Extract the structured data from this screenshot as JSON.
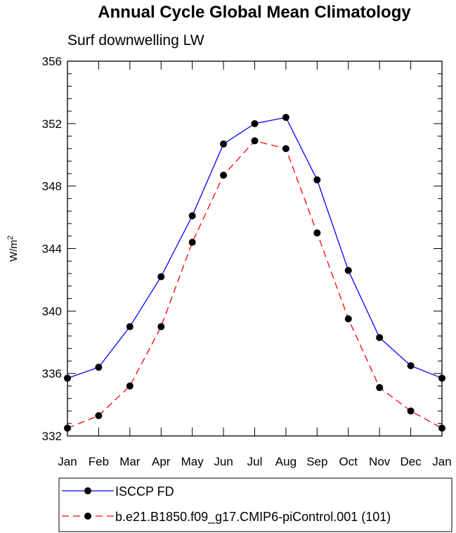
{
  "chart_data": {
    "type": "line",
    "title": "Annual Cycle Global Mean Climatology",
    "subtitle": "Surf downwelling LW",
    "xlabel": "",
    "ylabel": "W/m",
    "ylabel_superscript": "2",
    "categories": [
      "Jan",
      "Feb",
      "Mar",
      "Apr",
      "May",
      "Jun",
      "Jul",
      "Aug",
      "Sep",
      "Oct",
      "Nov",
      "Dec",
      "Jan"
    ],
    "ylim": [
      332,
      356
    ],
    "yticks": [
      332,
      336,
      340,
      344,
      348,
      352,
      356
    ],
    "series": [
      {
        "name": "ISCCP FD",
        "color": "#0000ff",
        "dash": "solid",
        "values": [
          335.7,
          336.4,
          339.0,
          342.2,
          346.1,
          350.7,
          352.0,
          352.4,
          348.4,
          342.6,
          338.3,
          336.5,
          335.7
        ]
      },
      {
        "name": "b.e21.B1850.f09_g17.CMIP6-piControl.001 (101)",
        "color": "#ff0000",
        "dash": "dashed",
        "values": [
          332.5,
          333.3,
          335.2,
          339.0,
          344.4,
          348.7,
          350.9,
          350.4,
          345.0,
          339.5,
          335.1,
          333.6,
          332.5
        ]
      }
    ],
    "legend_position": "bottom-left"
  }
}
